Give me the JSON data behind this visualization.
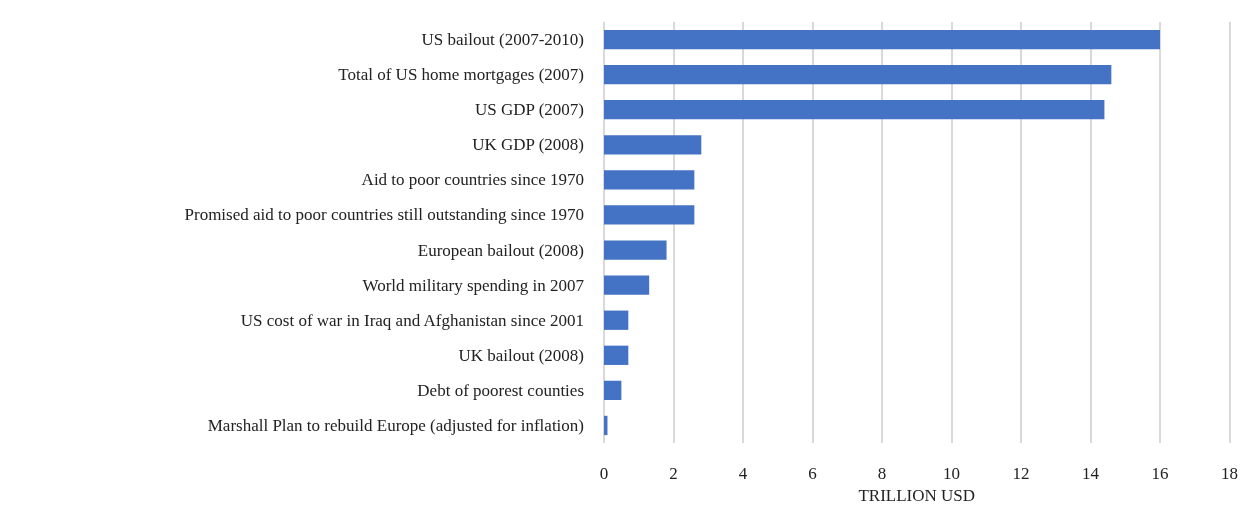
{
  "chart_data": {
    "type": "bar",
    "orientation": "horizontal",
    "xlabel": "TRILLION USD",
    "categories": [
      "US bailout (2007-2010)",
      "Total of US home mortgages (2007)",
      "US GDP (2007)",
      "UK GDP (2008)",
      "Aid to poor countries since 1970",
      "Promised aid to poor countries still outstanding since 1970",
      "European bailout (2008)",
      "World military spending in 2007",
      "US cost of war in Iraq and Afghanistan since 2001",
      "UK bailout (2008)",
      "Debt of poorest counties",
      "Marshall Plan to rebuild Europe (adjusted for inflation)"
    ],
    "values": [
      16,
      14.6,
      14.4,
      2.8,
      2.6,
      2.6,
      1.8,
      1.3,
      0.7,
      0.7,
      0.5,
      0.1
    ],
    "color": "#4472c4",
    "xlim": [
      0,
      18
    ],
    "xticks": [
      0,
      2,
      4,
      6,
      8,
      10,
      12,
      14,
      16,
      18
    ],
    "grid": "x"
  }
}
